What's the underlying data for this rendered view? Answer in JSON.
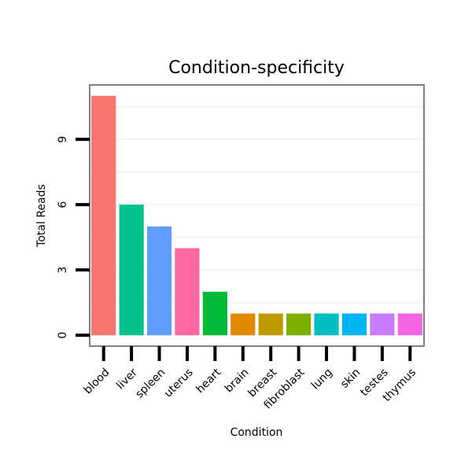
{
  "chart_data": {
    "type": "bar",
    "title": "Condition-specificity",
    "xlabel": "Condition",
    "ylabel": "Total Reads",
    "categories": [
      "blood",
      "liver",
      "spleen",
      "uterus",
      "heart",
      "brain",
      "breast",
      "fibroblast",
      "lung",
      "skin",
      "testes",
      "thymus"
    ],
    "values": [
      11,
      6,
      5,
      4,
      2,
      1,
      1,
      1,
      1,
      1,
      1,
      1
    ],
    "colors": [
      "#F8766D",
      "#00C08B",
      "#619CFF",
      "#FF67A4",
      "#00BA38",
      "#E18A00",
      "#BE9C00",
      "#7CAE00",
      "#00BFC4",
      "#00B4F0",
      "#C77CFF",
      "#F564E3"
    ],
    "yticks": [
      0,
      3,
      6,
      9
    ],
    "ylim": [
      -0.5,
      11.5
    ],
    "grid": true,
    "legend": "none"
  }
}
